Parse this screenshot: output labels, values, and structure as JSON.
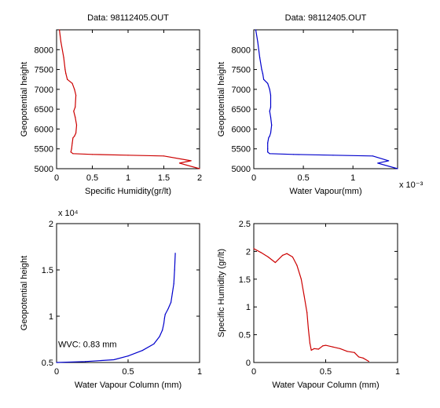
{
  "colors": {
    "red": "#cc0000",
    "blue": "#0000cc",
    "axis": "#000000",
    "background": "#ffffff"
  },
  "chart_data": [
    {
      "type": "line",
      "title": "Data: 98112405.OUT",
      "xlabel": "Specific Humidity(gr/lt)",
      "ylabel": "Geopotential height",
      "xlim": [
        0,
        2
      ],
      "ylim": [
        5000,
        8500
      ],
      "xticks": [
        "0",
        "0.5",
        "1",
        "1.5",
        "2"
      ],
      "yticks": [
        "5000",
        "5500",
        "6000",
        "6500",
        "7000",
        "7500",
        "8000"
      ],
      "x_exponent_label": "",
      "grid": false,
      "series": [
        {
          "color": "#cc0000",
          "x": [
            0.04,
            0.06,
            0.1,
            0.12,
            0.13,
            0.15,
            0.22,
            0.25,
            0.27,
            0.26,
            0.24,
            0.26,
            0.28,
            0.27,
            0.25,
            0.23,
            0.22,
            0.21,
            0.2,
            0.23,
            0.5,
            1.0,
            1.5,
            1.88,
            1.72,
            2.0
          ],
          "y": [
            8500,
            8200,
            7800,
            7500,
            7400,
            7250,
            7150,
            7000,
            6850,
            6550,
            6450,
            6300,
            6100,
            5900,
            5820,
            5780,
            5650,
            5500,
            5420,
            5380,
            5360,
            5340,
            5320,
            5200,
            5140,
            5000
          ]
        }
      ]
    },
    {
      "type": "line",
      "title": "Data: 98112405.OUT",
      "xlabel": "Water Vapour(mm)",
      "ylabel": "Geopotential height",
      "xlim": [
        0,
        0.00145
      ],
      "ylim": [
        5000,
        8500
      ],
      "xticks": [
        "0",
        "0.5",
        "1"
      ],
      "yticks": [
        "5000",
        "5500",
        "6000",
        "6500",
        "7000",
        "7500",
        "8000"
      ],
      "x_exponent_label": "x 10⁻³",
      "grid": false,
      "series": [
        {
          "color": "#0000cc",
          "x": [
            2e-05,
            4e-05,
            6e-05,
            8e-05,
            9e-05,
            0.0001,
            0.00014,
            0.00016,
            0.00017,
            0.00017,
            0.00016,
            0.00017,
            0.00018,
            0.00017,
            0.00016,
            0.00015,
            0.00014,
            0.00014,
            0.00014,
            0.00016,
            0.0004,
            0.0008,
            0.0012,
            0.00136,
            0.00125,
            0.00145
          ],
          "y": [
            8500,
            8200,
            7800,
            7500,
            7400,
            7250,
            7150,
            7000,
            6850,
            6550,
            6450,
            6300,
            6100,
            5900,
            5820,
            5780,
            5650,
            5500,
            5420,
            5380,
            5360,
            5340,
            5320,
            5200,
            5140,
            5000
          ]
        }
      ]
    },
    {
      "type": "line",
      "title": "",
      "xlabel": "Water Vapour Column (mm)",
      "ylabel": "Geopotential height",
      "xlim": [
        0,
        1
      ],
      "ylim": [
        5000,
        20000
      ],
      "xticks": [
        "0",
        "0.5",
        "1"
      ],
      "yticks": [
        "0.5",
        "1",
        "1.5",
        "2"
      ],
      "y_exponent_label": "x 10⁴",
      "annotation": "WVC: 0.83 mm",
      "grid": false,
      "series": [
        {
          "color": "#0000cc",
          "x": [
            0.0,
            0.2,
            0.4,
            0.5,
            0.6,
            0.68,
            0.72,
            0.74,
            0.75,
            0.755,
            0.76,
            0.78,
            0.8,
            0.81,
            0.82,
            0.825,
            0.83
          ],
          "y": [
            5000,
            5100,
            5300,
            5700,
            6300,
            7000,
            7800,
            8500,
            9200,
            9800,
            10200,
            10800,
            11500,
            12500,
            13500,
            15000,
            16800
          ]
        }
      ]
    },
    {
      "type": "line",
      "title": "",
      "xlabel": "Water Vapour Column (mm)",
      "ylabel": "Specific Humidity (gr/lt)",
      "xlim": [
        0,
        1
      ],
      "ylim": [
        0,
        2.5
      ],
      "xticks": [
        "0",
        "0.5",
        "1"
      ],
      "yticks": [
        "0",
        "0.5",
        "1",
        "1.5",
        "2",
        "2.5"
      ],
      "grid": false,
      "series": [
        {
          "color": "#cc0000",
          "x": [
            0.0,
            0.05,
            0.1,
            0.15,
            0.2,
            0.23,
            0.27,
            0.3,
            0.33,
            0.35,
            0.37,
            0.38,
            0.39,
            0.4,
            0.42,
            0.45,
            0.48,
            0.5,
            0.55,
            0.6,
            0.65,
            0.7,
            0.73,
            0.76,
            0.8
          ],
          "y": [
            2.05,
            1.98,
            1.9,
            1.8,
            1.93,
            1.96,
            1.9,
            1.75,
            1.5,
            1.2,
            0.9,
            0.6,
            0.35,
            0.22,
            0.25,
            0.24,
            0.3,
            0.31,
            0.28,
            0.25,
            0.2,
            0.18,
            0.1,
            0.08,
            0.02
          ]
        }
      ]
    }
  ]
}
